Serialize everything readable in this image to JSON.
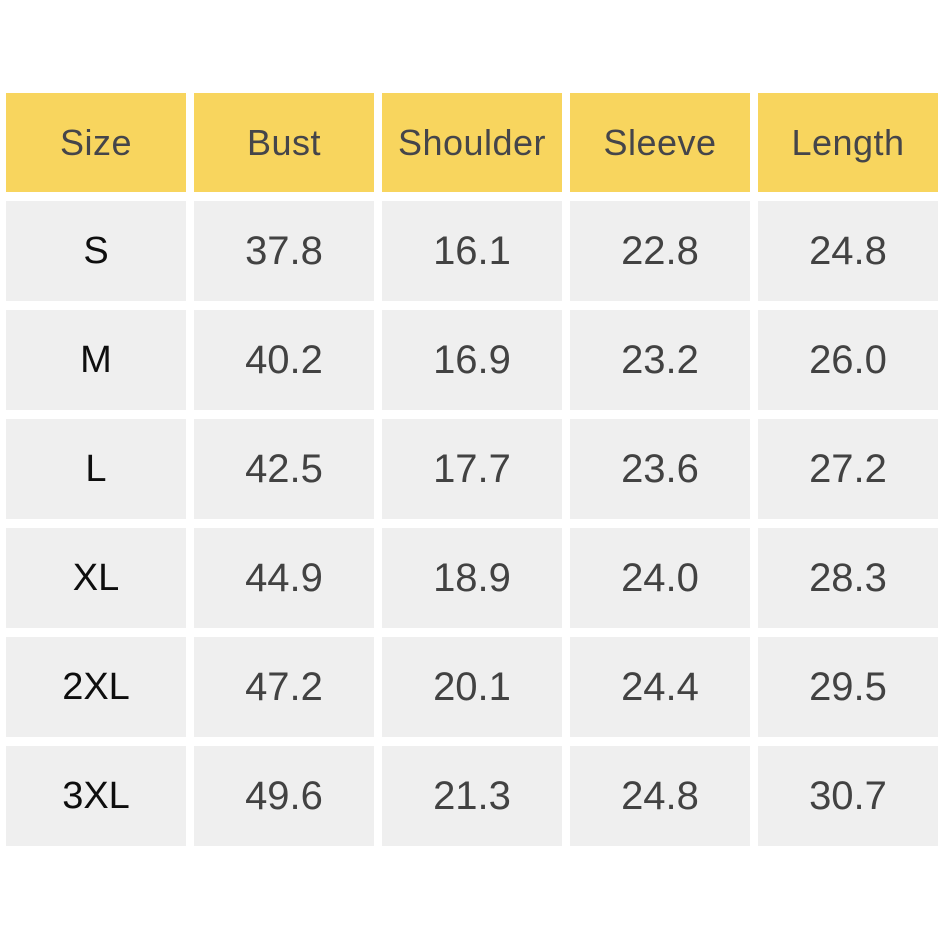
{
  "chart_data": {
    "type": "table",
    "columns": [
      "Size",
      "Bust",
      "Shoulder",
      "Sleeve",
      "Length"
    ],
    "rows": [
      [
        "S",
        37.8,
        16.1,
        22.8,
        24.8
      ],
      [
        "M",
        40.2,
        16.9,
        23.2,
        26.0
      ],
      [
        "L",
        42.5,
        17.7,
        23.6,
        27.2
      ],
      [
        "XL",
        44.9,
        18.9,
        24.0,
        28.3
      ],
      [
        "2XL",
        47.2,
        20.1,
        24.4,
        29.5
      ],
      [
        "3XL",
        49.6,
        21.3,
        24.8,
        30.7
      ]
    ],
    "layout": {
      "header_position": "top",
      "grid": "off",
      "cell_gaps": true
    }
  },
  "table": {
    "headers": [
      "Size",
      "Bust",
      "Shoulder",
      "Sleeve",
      "Length"
    ],
    "rows": [
      [
        "S",
        "37.8",
        "16.1",
        "22.8",
        "24.8"
      ],
      [
        "M",
        "40.2",
        "16.9",
        "23.2",
        "26.0"
      ],
      [
        "L",
        "42.5",
        "17.7",
        "23.6",
        "27.2"
      ],
      [
        "XL",
        "44.9",
        "18.9",
        "24.0",
        "28.3"
      ],
      [
        "2XL",
        "47.2",
        "20.1",
        "24.4",
        "29.5"
      ],
      [
        "3XL",
        "49.6",
        "21.3",
        "24.8",
        "30.7"
      ]
    ]
  },
  "colors": {
    "header_bg": "#F8D55E",
    "cell_bg": "#EFEFEF",
    "header_text": "#45454A",
    "value_text": "#424242",
    "size_text": "#0E0E0E",
    "background": "#FFFFFF"
  }
}
